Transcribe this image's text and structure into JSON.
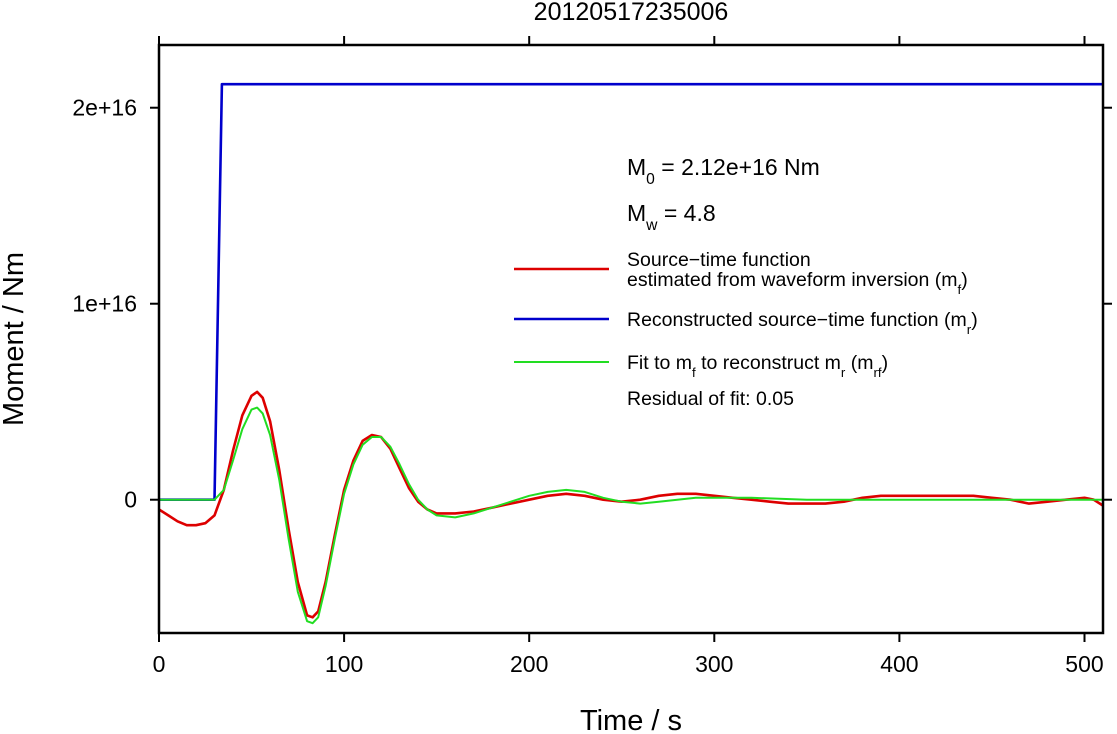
{
  "chart_data": {
    "type": "line",
    "title": "20120517235006",
    "xlabel": "Time / s",
    "ylabel": "Moment / Nm",
    "xlim": [
      0,
      510
    ],
    "ylim": [
      -6800000000000000.0,
      2.32e+16
    ],
    "x_ticks": [
      0,
      100,
      200,
      300,
      400,
      500
    ],
    "x_tick_labels": [
      "0",
      "100",
      "200",
      "300",
      "400",
      "500"
    ],
    "y_ticks": [
      0,
      1e+16,
      2e+16
    ],
    "y_tick_labels": [
      "0",
      "1e+16",
      "2e+16"
    ],
    "grid": false,
    "legend_position": "right",
    "annotations": {
      "m0": {
        "symbol": "M",
        "sub": "0",
        "text": " = 2.12e+16 Nm"
      },
      "mw": {
        "symbol": "M",
        "sub": "w",
        "text": " = 4.8"
      },
      "residual": "Residual of fit: 0.05"
    },
    "series": [
      {
        "key": "mf",
        "legend_lines": [
          "Source−time function",
          "estimated from waveform inversion (m"
        ],
        "legend_sub": "f",
        "legend_tail": ")",
        "color": "#dd0000",
        "width": 2.6,
        "points": [
          [
            0,
            -500000000000000.0
          ],
          [
            5,
            -800000000000000.0
          ],
          [
            10,
            -1100000000000000.0
          ],
          [
            15,
            -1300000000000000.0
          ],
          [
            20,
            -1300000000000000.0
          ],
          [
            25,
            -1200000000000000.0
          ],
          [
            30,
            -800000000000000.0
          ],
          [
            35,
            500000000000000.0
          ],
          [
            40,
            2500000000000000.0
          ],
          [
            45,
            4300000000000000.0
          ],
          [
            50,
            5300000000000000.0
          ],
          [
            53,
            5500000000000000.0
          ],
          [
            56,
            5200000000000000.0
          ],
          [
            60,
            4000000000000000.0
          ],
          [
            65,
            1500000000000000.0
          ],
          [
            70,
            -1500000000000000.0
          ],
          [
            75,
            -4200000000000000.0
          ],
          [
            80,
            -5900000000000000.0
          ],
          [
            83,
            -6000000000000000.0
          ],
          [
            86,
            -5700000000000000.0
          ],
          [
            90,
            -4200000000000000.0
          ],
          [
            95,
            -1800000000000000.0
          ],
          [
            100,
            500000000000000.0
          ],
          [
            105,
            2000000000000000.0
          ],
          [
            110,
            3000000000000000.0
          ],
          [
            115,
            3300000000000000.0
          ],
          [
            120,
            3200000000000000.0
          ],
          [
            125,
            2600000000000000.0
          ],
          [
            130,
            1600000000000000.0
          ],
          [
            135,
            600000000000000.0
          ],
          [
            140,
            -100000000000000.0
          ],
          [
            145,
            -500000000000000.0
          ],
          [
            150,
            -700000000000000.0
          ],
          [
            160,
            -700000000000000.0
          ],
          [
            170,
            -600000000000000.0
          ],
          [
            180,
            -400000000000000.0
          ],
          [
            190,
            -200000000000000.0
          ],
          [
            200,
            0.0
          ],
          [
            210,
            200000000000000.0
          ],
          [
            220,
            300000000000000.0
          ],
          [
            230,
            200000000000000.0
          ],
          [
            240,
            0.0
          ],
          [
            250,
            -100000000000000.0
          ],
          [
            260,
            0.0
          ],
          [
            270,
            200000000000000.0
          ],
          [
            280,
            300000000000000.0
          ],
          [
            290,
            300000000000000.0
          ],
          [
            300,
            200000000000000.0
          ],
          [
            310,
            100000000000000.0
          ],
          [
            320,
            0.0
          ],
          [
            330,
            -100000000000000.0
          ],
          [
            340,
            -200000000000000.0
          ],
          [
            350,
            -200000000000000.0
          ],
          [
            360,
            -200000000000000.0
          ],
          [
            370,
            -100000000000000.0
          ],
          [
            380,
            100000000000000.0
          ],
          [
            390,
            200000000000000.0
          ],
          [
            400,
            200000000000000.0
          ],
          [
            410,
            200000000000000.0
          ],
          [
            420,
            200000000000000.0
          ],
          [
            430,
            200000000000000.0
          ],
          [
            440,
            200000000000000.0
          ],
          [
            450,
            100000000000000.0
          ],
          [
            460,
            0.0
          ],
          [
            470,
            -200000000000000.0
          ],
          [
            480,
            -100000000000000.0
          ],
          [
            490,
            0.0
          ],
          [
            500,
            100000000000000.0
          ],
          [
            505,
            0.0
          ],
          [
            510,
            -300000000000000.0
          ]
        ]
      },
      {
        "key": "mr",
        "legend_lines": [
          "Reconstructed source−time function (m"
        ],
        "legend_sub": "r",
        "legend_tail": ")",
        "color": "#0000cc",
        "width": 2.6,
        "points": [
          [
            0,
            0
          ],
          [
            30,
            0
          ],
          [
            34,
            2.12e+16
          ],
          [
            510,
            2.12e+16
          ]
        ]
      },
      {
        "key": "mrf",
        "legend_lines": [
          "Fit to m"
        ],
        "legend_sub": "f",
        "legend_tail": " to reconstruct m",
        "legend_sub2": "r",
        "legend_tail2": " (m",
        "legend_sub3": "rf",
        "legend_tail3": ")",
        "color": "#22dd22",
        "width": 2.0,
        "points": [
          [
            0,
            0
          ],
          [
            30,
            0
          ],
          [
            35,
            500000000000000.0
          ],
          [
            40,
            2000000000000000.0
          ],
          [
            45,
            3600000000000000.0
          ],
          [
            50,
            4600000000000000.0
          ],
          [
            53,
            4700000000000000.0
          ],
          [
            56,
            4400000000000000.0
          ],
          [
            60,
            3300000000000000.0
          ],
          [
            65,
            1000000000000000.0
          ],
          [
            70,
            -2000000000000000.0
          ],
          [
            75,
            -4700000000000000.0
          ],
          [
            80,
            -6200000000000000.0
          ],
          [
            83,
            -6300000000000000.0
          ],
          [
            86,
            -6000000000000000.0
          ],
          [
            90,
            -4400000000000000.0
          ],
          [
            95,
            -2000000000000000.0
          ],
          [
            100,
            300000000000000.0
          ],
          [
            105,
            1800000000000000.0
          ],
          [
            110,
            2800000000000000.0
          ],
          [
            115,
            3200000000000000.0
          ],
          [
            120,
            3200000000000000.0
          ],
          [
            125,
            2700000000000000.0
          ],
          [
            130,
            1800000000000000.0
          ],
          [
            135,
            800000000000000.0
          ],
          [
            140,
            0.0
          ],
          [
            145,
            -500000000000000.0
          ],
          [
            150,
            -800000000000000.0
          ],
          [
            160,
            -900000000000000.0
          ],
          [
            170,
            -700000000000000.0
          ],
          [
            180,
            -400000000000000.0
          ],
          [
            190,
            -100000000000000.0
          ],
          [
            200,
            200000000000000.0
          ],
          [
            210,
            400000000000000.0
          ],
          [
            220,
            500000000000000.0
          ],
          [
            230,
            400000000000000.0
          ],
          [
            240,
            100000000000000.0
          ],
          [
            250,
            -100000000000000.0
          ],
          [
            260,
            -200000000000000.0
          ],
          [
            270,
            -100000000000000.0
          ],
          [
            280,
            0.0
          ],
          [
            290,
            100000000000000.0
          ],
          [
            300,
            100000000000000.0
          ],
          [
            320,
            100000000000000.0
          ],
          [
            350,
            0.0
          ],
          [
            400,
            0.0
          ],
          [
            450,
            0.0
          ],
          [
            480,
            0.0
          ],
          [
            500,
            0.0
          ],
          [
            510,
            0.0
          ]
        ]
      }
    ]
  }
}
